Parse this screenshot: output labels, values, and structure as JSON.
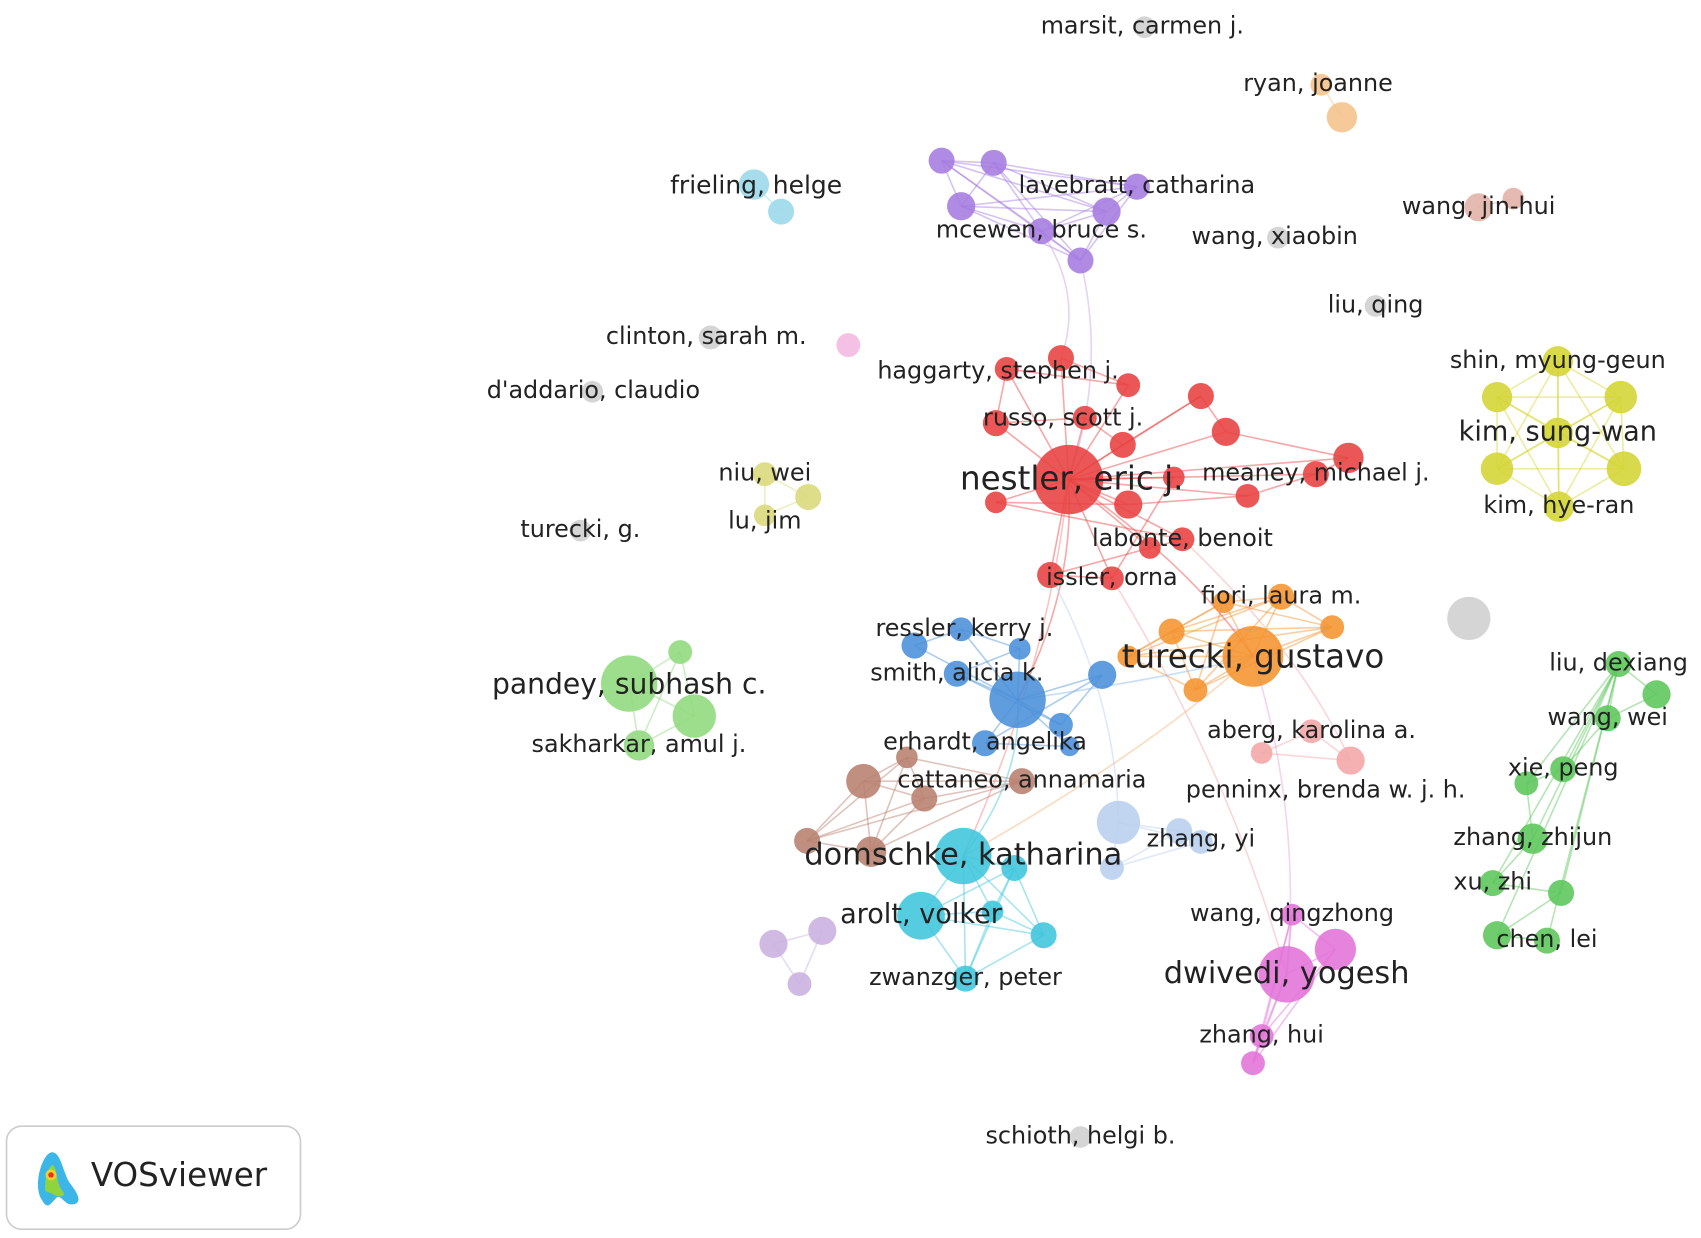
{
  "nodes": [
    {
      "label": "marsit, carmen j."
    },
    {
      "label": "ryan, joanne"
    },
    {
      "label": "frieling, helge"
    },
    {
      "label": "lavebratt, catharina"
    },
    {
      "label": "mcewen, bruce s."
    },
    {
      "label": "wang, jin-hui"
    },
    {
      "label": "wang, xiaobin"
    },
    {
      "label": "liu, qing"
    },
    {
      "label": "clinton, sarah m."
    },
    {
      "label": "d'addario, claudio"
    },
    {
      "label": "haggarty, stephen j."
    },
    {
      "label": "russo, scott j."
    },
    {
      "label": "nestler, eric j."
    },
    {
      "label": "meaney, michael j."
    },
    {
      "label": "shin, myung-geun"
    },
    {
      "label": "kim, sung-wan"
    },
    {
      "label": "kim, hye-ran"
    },
    {
      "label": "niu, wei"
    },
    {
      "label": "lu, jim"
    },
    {
      "label": "turecki, g."
    },
    {
      "label": "labonte, benoit"
    },
    {
      "label": "issler, orna"
    },
    {
      "label": "fiori, laura m."
    },
    {
      "label": "ressler, kerry j."
    },
    {
      "label": "turecki, gustavo"
    },
    {
      "label": "pandey, subhash c."
    },
    {
      "label": "smith, alicia k."
    },
    {
      "label": "liu, dexiang"
    },
    {
      "label": "wang, wei"
    },
    {
      "label": "aberg, karolina a."
    },
    {
      "label": "sakharkar, amul j."
    },
    {
      "label": "erhardt, angelika"
    },
    {
      "label": "xie, peng"
    },
    {
      "label": "cattaneo, annamaria"
    },
    {
      "label": "penninx, brenda w. j. h."
    },
    {
      "label": "zhang, yi"
    },
    {
      "label": "zhang, zhijun"
    },
    {
      "label": "domschke, katharina"
    },
    {
      "label": "xu, zhi"
    },
    {
      "label": "arolt, volker"
    },
    {
      "label": "wang, qingzhong"
    },
    {
      "label": "chen, lei"
    },
    {
      "label": "dwivedi, yogesh"
    },
    {
      "label": "zwanzger, peter"
    },
    {
      "label": "zhang, hui"
    },
    {
      "label": "schioth, helgi b."
    }
  ],
  "logo": {
    "text": "VOSviewer"
  }
}
